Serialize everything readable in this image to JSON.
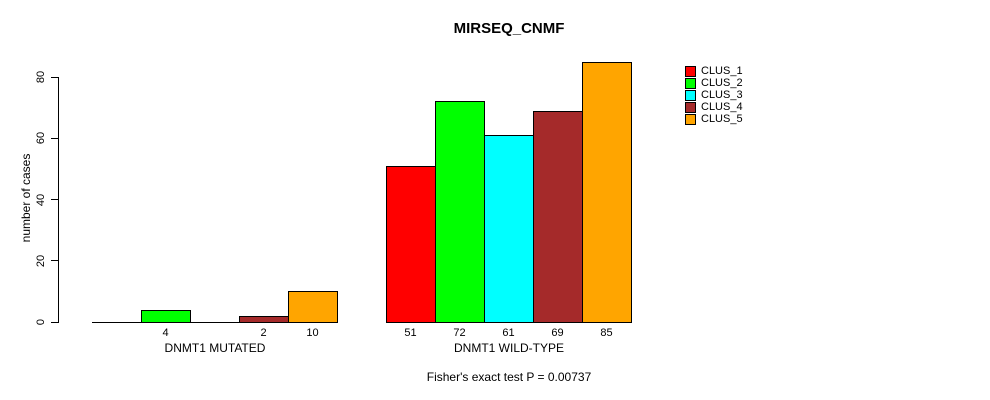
{
  "title": "MIRSEQ_CNMF",
  "footer": "Fisher's exact test P = 0.00737",
  "chart_data": {
    "type": "bar",
    "title": "MIRSEQ_CNMF",
    "xlabel": "",
    "ylabel": "number of cases",
    "categories": [
      "DNMT1 MUTATED",
      "DNMT1 WILD-TYPE"
    ],
    "series": [
      {
        "name": "CLUS_1",
        "color": "#ff0000",
        "values": [
          0,
          51
        ]
      },
      {
        "name": "CLUS_2",
        "color": "#00ff00",
        "values": [
          4,
          72
        ]
      },
      {
        "name": "CLUS_3",
        "color": "#00ffff",
        "values": [
          0,
          61
        ]
      },
      {
        "name": "CLUS_4",
        "color": "#a52a2a",
        "values": [
          2,
          69
        ]
      },
      {
        "name": "CLUS_5",
        "color": "#ffa500",
        "values": [
          10,
          85
        ]
      }
    ],
    "bar_value_labels": {
      "DNMT1 MUTATED": [
        "",
        "4",
        "",
        "2",
        "10"
      ],
      "DNMT1 WILD-TYPE": [
        "51",
        "72",
        "61",
        "69",
        "85"
      ]
    },
    "yticks": [
      0,
      20,
      40,
      60,
      80
    ],
    "ylim": [
      0,
      80
    ],
    "grid": false,
    "legend_position": "right",
    "annotation": "Fisher's exact test P = 0.00737"
  }
}
